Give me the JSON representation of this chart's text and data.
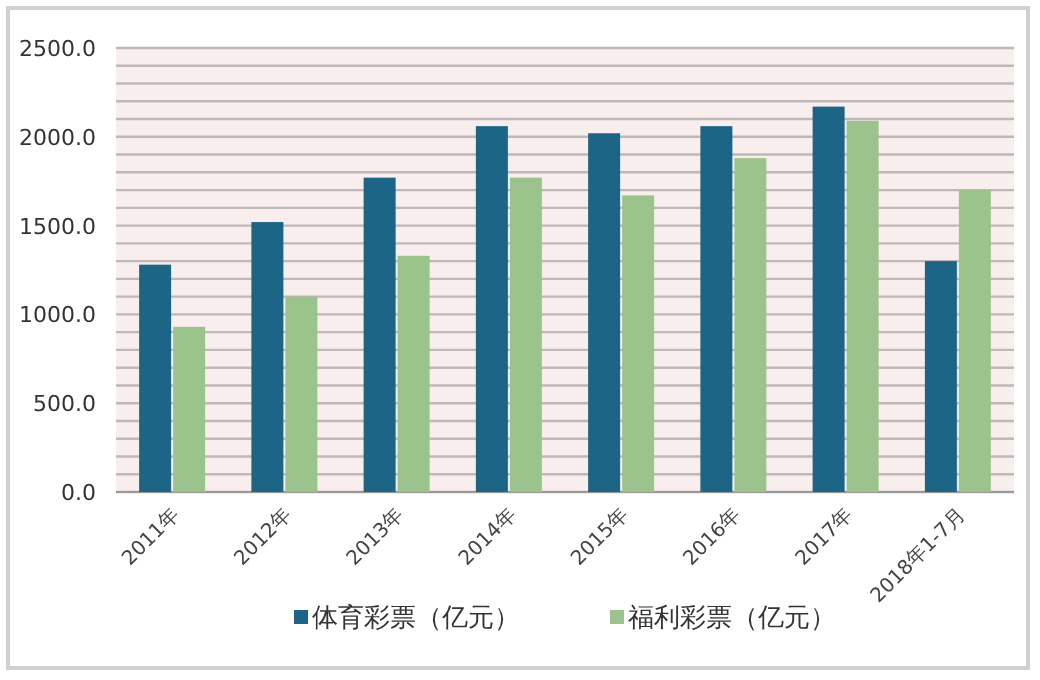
{
  "chart_data": {
    "type": "bar",
    "categories": [
      "2011年",
      "2012年",
      "2013年",
      "2014年",
      "2015年",
      "2016年",
      "2017年",
      "2018年1-7月"
    ],
    "series": [
      {
        "name": "体育彩票（亿元）",
        "color": "#1d6587",
        "values": [
          1280,
          1520,
          1770,
          2060,
          2020,
          2060,
          2170,
          1300
        ]
      },
      {
        "name": "福利彩票（亿元）",
        "color": "#9dc38d",
        "values": [
          930,
          1100,
          1330,
          1770,
          1670,
          1880,
          2090,
          1700
        ]
      }
    ],
    "ylim": [
      0,
      2500
    ],
    "yticks": [
      {
        "value": 0,
        "label": "0.0"
      },
      {
        "value": 100,
        "label": null
      },
      {
        "value": 200,
        "label": null
      },
      {
        "value": 300,
        "label": null
      },
      {
        "value": 400,
        "label": null
      },
      {
        "value": 500,
        "label": "500.0"
      },
      {
        "value": 600,
        "label": null
      },
      {
        "value": 700,
        "label": null
      },
      {
        "value": 800,
        "label": null
      },
      {
        "value": 900,
        "label": null
      },
      {
        "value": 1000,
        "label": "1000.0"
      },
      {
        "value": 1100,
        "label": null
      },
      {
        "value": 1200,
        "label": null
      },
      {
        "value": 1300,
        "label": null
      },
      {
        "value": 1400,
        "label": null
      },
      {
        "value": 1500,
        "label": "1500.0"
      },
      {
        "value": 1600,
        "label": null
      },
      {
        "value": 1700,
        "label": null
      },
      {
        "value": 1800,
        "label": null
      },
      {
        "value": 1900,
        "label": null
      },
      {
        "value": 2000,
        "label": "2000.0"
      },
      {
        "value": 2100,
        "label": null
      },
      {
        "value": 2200,
        "label": null
      },
      {
        "value": 2300,
        "label": null
      },
      {
        "value": 2400,
        "label": null
      },
      {
        "value": 2500,
        "label": "2500.0"
      }
    ],
    "grid": "y",
    "legend": "bottom"
  }
}
